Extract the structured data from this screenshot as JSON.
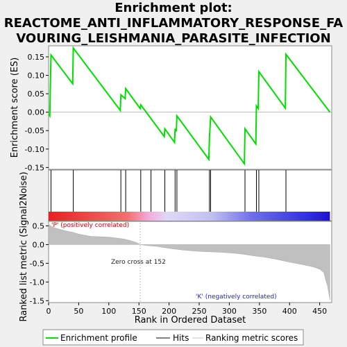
{
  "title_lines": [
    "Enrichment plot:",
    "REACTOME_ANTI_INFLAMMATORY_RESPONSE_FA",
    "VOURING_LEISHMANIA_PARASITE_INFECTION"
  ],
  "colors": {
    "curve": "#00dd00",
    "hits": "#000000",
    "metric_fill": "#c0c0c0",
    "pos_label": "#cc0000",
    "neg_label": "#2222cc",
    "bar_red": "#e82020",
    "bar_blue": "#2020e0"
  },
  "chart_data": [
    {
      "type": "line",
      "name": "enrichment-profile",
      "ylabel": "Enrichment score (ES)",
      "xlim": [
        0,
        470
      ],
      "ylim": [
        -0.155,
        0.18
      ],
      "yticks": [
        -0.15,
        -0.1,
        -0.05,
        0.0,
        0.05,
        0.1,
        0.15
      ],
      "ytick_labels": [
        "-0.15",
        "-0.10",
        "-0.05",
        "0.00",
        "0.05",
        "0.10",
        "0.15"
      ],
      "points": [
        [
          0,
          -0.005
        ],
        [
          2,
          -0.01
        ],
        [
          4,
          0.155
        ],
        [
          40,
          0.077
        ],
        [
          41,
          0.174
        ],
        [
          119,
          0.005
        ],
        [
          120,
          0.047
        ],
        [
          127,
          0.037
        ],
        [
          128,
          0.064
        ],
        [
          152,
          0.01
        ],
        [
          153,
          0.02
        ],
        [
          192,
          -0.066
        ],
        [
          193,
          -0.045
        ],
        [
          209,
          -0.082
        ],
        [
          210,
          -0.045
        ],
        [
          212,
          -0.052
        ],
        [
          213,
          -0.01
        ],
        [
          266,
          -0.128
        ],
        [
          267,
          -0.07
        ],
        [
          269,
          -0.013
        ],
        [
          325,
          -0.14
        ],
        [
          326,
          -0.045
        ],
        [
          344,
          -0.086
        ],
        [
          345,
          0.017
        ],
        [
          348,
          0.01
        ],
        [
          349,
          0.11
        ],
        [
          393,
          0.011
        ],
        [
          394,
          0.157
        ],
        [
          467,
          0.0
        ]
      ]
    },
    {
      "type": "scatter",
      "name": "hits",
      "x": [
        4,
        41,
        120,
        128,
        153,
        170,
        193,
        210,
        213,
        267,
        269,
        326,
        345,
        349,
        394
      ]
    },
    {
      "type": "area",
      "name": "ranking-metric",
      "xlabel": "Rank in Ordered Dataset",
      "ylabel": "Ranked list metric (Signal2Noise)",
      "xlim": [
        0,
        470
      ],
      "ylim": [
        -1.55,
        0.62
      ],
      "xticks": [
        0,
        50,
        100,
        150,
        200,
        250,
        300,
        350,
        400,
        450
      ],
      "yticks": [
        -1.5,
        -1.0,
        -0.5,
        0.0,
        0.5
      ],
      "ytick_labels": [
        "-1.5",
        "-1.0",
        "-0.5",
        "0.0",
        "0.5"
      ],
      "points": [
        [
          0,
          0.55
        ],
        [
          5,
          0.48
        ],
        [
          10,
          0.45
        ],
        [
          20,
          0.4
        ],
        [
          30,
          0.36
        ],
        [
          40,
          0.33
        ],
        [
          50,
          0.28
        ],
        [
          60,
          0.25
        ],
        [
          70,
          0.22
        ],
        [
          100,
          0.2
        ],
        [
          115,
          0.17
        ],
        [
          125,
          0.15
        ],
        [
          135,
          0.11
        ],
        [
          145,
          0.06
        ],
        [
          150,
          0.02
        ],
        [
          152,
          0.0
        ],
        [
          160,
          -0.02
        ],
        [
          180,
          -0.05
        ],
        [
          200,
          -0.1
        ],
        [
          220,
          -0.14
        ],
        [
          240,
          -0.17
        ],
        [
          260,
          -0.19
        ],
        [
          280,
          -0.2
        ],
        [
          300,
          -0.22
        ],
        [
          320,
          -0.25
        ],
        [
          340,
          -0.3
        ],
        [
          360,
          -0.34
        ],
        [
          380,
          -0.4
        ],
        [
          400,
          -0.47
        ],
        [
          420,
          -0.53
        ],
        [
          440,
          -0.6
        ],
        [
          450,
          -0.66
        ],
        [
          457,
          -0.75
        ],
        [
          460,
          -0.95
        ],
        [
          463,
          -1.1
        ],
        [
          467,
          -1.48
        ]
      ],
      "annotations": {
        "zero_cross": "Zero cross at 152",
        "pos": "'P' (positively correlated)",
        "neg": "'K' (negatively correlated)"
      }
    }
  ],
  "legend": {
    "items": [
      "Enrichment profile",
      "Hits",
      "Ranking metric scores"
    ]
  }
}
